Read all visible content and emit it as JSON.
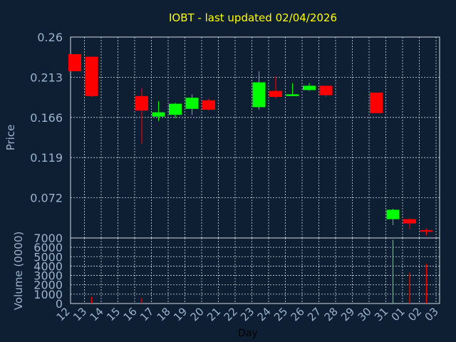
{
  "chart_data": {
    "type": "candlestick",
    "title": "IOBT - last updated 02/04/2026",
    "colors": {
      "background": "#0f1f33",
      "title": "#ffff00",
      "axis_text": "#9ab3cc",
      "axis_line": "#d0d8e0",
      "grid": "#d0d8e0",
      "up": "#00ff00",
      "down": "#ff0000"
    },
    "price_panel": {
      "ylabel": "Price",
      "ylim": [
        0.025,
        0.26
      ],
      "yticks": [
        "0.26",
        "0.213",
        "0.166",
        "0.119",
        "0.072"
      ],
      "ytick_values": [
        0.26,
        0.213,
        0.166,
        0.119,
        0.072
      ]
    },
    "volume_panel": {
      "ylabel": "Volume (0000)",
      "ylim": [
        0,
        7000
      ],
      "yticks": [
        "7000",
        "6000",
        "5000",
        "4000",
        "3000",
        "2000",
        "1000",
        "0"
      ],
      "ytick_values": [
        7000,
        6000,
        5000,
        4000,
        3000,
        2000,
        1000,
        0
      ]
    },
    "xlabel": "Day",
    "x_categories": [
      "12",
      "13",
      "14",
      "15",
      "16",
      "17",
      "18",
      "19",
      "20",
      "21",
      "22",
      "23",
      "24",
      "25",
      "26",
      "27",
      "28",
      "29",
      "30",
      "31",
      "01",
      "02",
      "03"
    ],
    "candles": [
      {
        "day": "12",
        "open": 0.24,
        "high": 0.24,
        "low": 0.22,
        "close": 0.22,
        "volume": 0
      },
      {
        "day": "13",
        "open": 0.237,
        "high": 0.237,
        "low": 0.19,
        "close": 0.191,
        "volume": 700
      },
      {
        "day": "16",
        "open": 0.191,
        "high": 0.2,
        "low": 0.135,
        "close": 0.174,
        "volume": 600
      },
      {
        "day": "17",
        "open": 0.167,
        "high": 0.185,
        "low": 0.162,
        "close": 0.172,
        "volume": 0
      },
      {
        "day": "18",
        "open": 0.169,
        "high": 0.183,
        "low": 0.165,
        "close": 0.182,
        "volume": 0
      },
      {
        "day": "19",
        "open": 0.176,
        "high": 0.193,
        "low": 0.169,
        "close": 0.189,
        "volume": 0
      },
      {
        "day": "20",
        "open": 0.186,
        "high": 0.188,
        "low": 0.174,
        "close": 0.175,
        "volume": 0
      },
      {
        "day": "23",
        "open": 0.178,
        "high": 0.22,
        "low": 0.175,
        "close": 0.207,
        "volume": 0
      },
      {
        "day": "24",
        "open": 0.197,
        "high": 0.214,
        "low": 0.188,
        "close": 0.19,
        "volume": 0
      },
      {
        "day": "25",
        "open": 0.191,
        "high": 0.206,
        "low": 0.191,
        "close": 0.193,
        "volume": 0
      },
      {
        "day": "26",
        "open": 0.198,
        "high": 0.206,
        "low": 0.197,
        "close": 0.203,
        "volume": 0
      },
      {
        "day": "27",
        "open": 0.203,
        "high": 0.203,
        "low": 0.19,
        "close": 0.192,
        "volume": 0
      },
      {
        "day": "30",
        "open": 0.195,
        "high": 0.195,
        "low": 0.171,
        "close": 0.171,
        "volume": 0
      },
      {
        "day": "31",
        "open": 0.047,
        "high": 0.059,
        "low": 0.04,
        "close": 0.058,
        "volume": 6800
      },
      {
        "day": "01",
        "open": 0.047,
        "high": 0.048,
        "low": 0.035,
        "close": 0.042,
        "volume": 3300
      },
      {
        "day": "02",
        "open": 0.034,
        "high": 0.036,
        "low": 0.028,
        "close": 0.033,
        "volume": 4200
      }
    ]
  }
}
